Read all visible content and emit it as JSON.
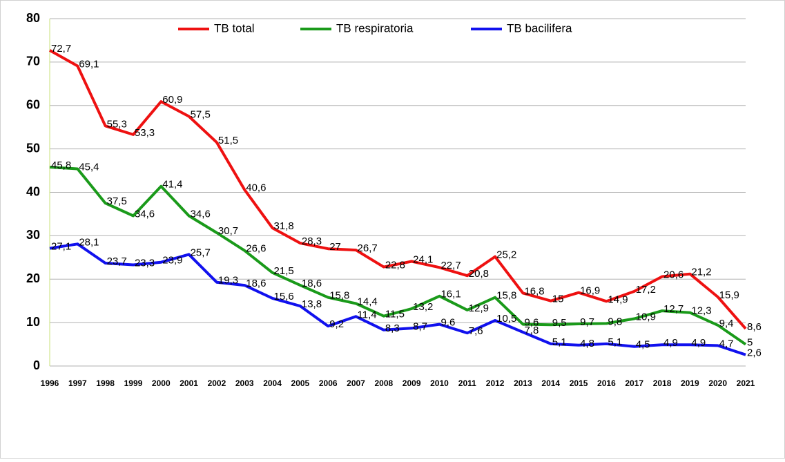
{
  "chart_data": {
    "type": "line",
    "categories": [
      "1996",
      "1997",
      "1998",
      "1999",
      "2000",
      "2001",
      "2002",
      "2003",
      "2004",
      "2005",
      "2006",
      "2007",
      "2008",
      "2009",
      "2010",
      "2011",
      "2012",
      "2013",
      "2014",
      "2015",
      "2016",
      "2017",
      "2018",
      "2019",
      "2020",
      "2021"
    ],
    "series": [
      {
        "name": "TB total",
        "color": "#ee1111",
        "values": [
          72.7,
          69.1,
          55.3,
          53.3,
          60.9,
          57.5,
          51.5,
          40.6,
          31.8,
          28.3,
          27,
          26.7,
          22.8,
          24.1,
          22.7,
          20.8,
          25.2,
          16.8,
          15,
          16.9,
          14.9,
          17.2,
          20.6,
          21.2,
          15.9,
          8.6
        ],
        "value_labels": [
          "72,7",
          "69,1",
          "55,3",
          "53,3",
          "60,9",
          "57,5",
          "51,5",
          "40,6",
          "31,8",
          "28,3",
          "27",
          "26,7",
          "22,8",
          "24,1",
          "22,7",
          "20,8",
          "25,2",
          "16,8",
          "15",
          "16,9",
          "14,9",
          "17,2",
          "20,6",
          "21,2",
          "15,9",
          "8,6"
        ]
      },
      {
        "name": "TB respiratoria",
        "color": "#1a9a1a",
        "values": [
          45.8,
          45.4,
          37.5,
          34.6,
          41.4,
          34.6,
          30.7,
          26.6,
          21.5,
          18.6,
          15.8,
          14.4,
          11.5,
          13.2,
          16.1,
          12.9,
          15.8,
          9.6,
          9.5,
          9.7,
          9.8,
          10.9,
          12.7,
          12.3,
          9.4,
          5
        ],
        "value_labels": [
          "45,8",
          "45,4",
          "37,5",
          "34,6",
          "41,4",
          "34,6",
          "30,7",
          "26,6",
          "21,5",
          "18,6",
          "15,8",
          "14,4",
          "11,5",
          "13,2",
          "16,1",
          "12,9",
          "15,8",
          "9,6",
          "9,5",
          "9,7",
          "9,8",
          "10,9",
          "12,7",
          "12,3",
          "9,4",
          "5"
        ]
      },
      {
        "name": "TB bacilifera",
        "color": "#1111ee",
        "values": [
          27.1,
          28.1,
          23.7,
          23.3,
          23.9,
          25.7,
          19.3,
          18.6,
          15.6,
          13.8,
          9.2,
          11.4,
          8.3,
          8.7,
          9.6,
          7.6,
          10.5,
          7.8,
          5.1,
          4.8,
          5.1,
          4.5,
          4.9,
          4.9,
          4.7,
          2.6
        ],
        "value_labels": [
          "27,1",
          "28,1",
          "23,7",
          "23,3",
          "23,9",
          "25,7",
          "19,3",
          "18,6",
          "15,6",
          "13,8",
          "9,2",
          "11,4",
          "8,3",
          "8,7",
          "9,6",
          "7,6",
          "10,5",
          "7,8",
          "5,1",
          "4,8",
          "5,1",
          "4,5",
          "4,9",
          "4,9",
          "4,7",
          "2,6"
        ]
      }
    ],
    "ylim": [
      0,
      80
    ],
    "yticks": [
      0,
      10,
      20,
      30,
      40,
      50,
      60,
      70,
      80
    ],
    "grid": true,
    "legend": "top"
  }
}
